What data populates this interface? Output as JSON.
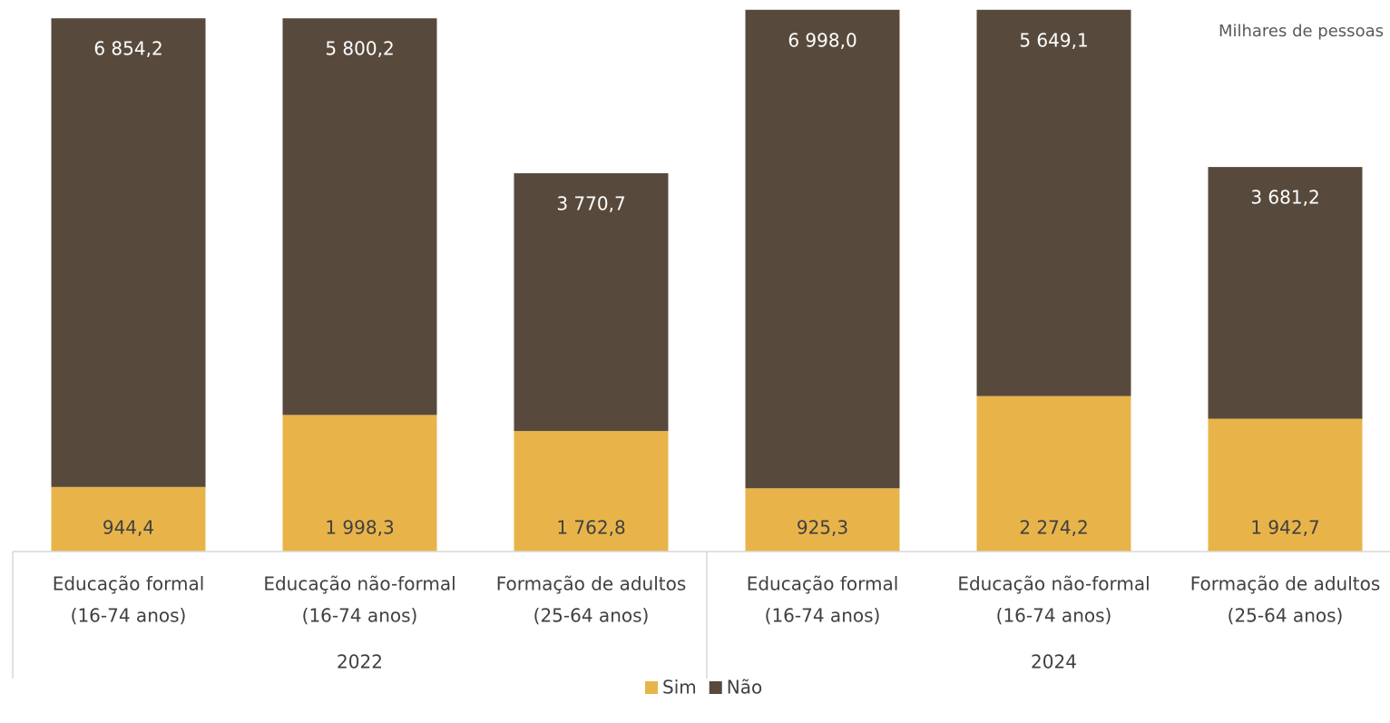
{
  "chart_data": {
    "type": "bar",
    "stacked": true,
    "unit_label": "Milhares de pessoas",
    "groups": [
      {
        "name": "2022",
        "categories": [
          [
            "Educação formal",
            "(16-74 anos)"
          ],
          [
            "Educação não-formal",
            "(16-74 anos)"
          ],
          [
            "Formação de adultos",
            "(25-64 anos)"
          ]
        ]
      },
      {
        "name": "2024",
        "categories": [
          [
            "Educação formal",
            "(16-74 anos)"
          ],
          [
            "Educação não-formal",
            "(16-74 anos)"
          ],
          [
            "Formação de adultos",
            "(25-64 anos)"
          ]
        ]
      }
    ],
    "series": [
      {
        "name": "Sim",
        "color": "#e8b44a",
        "values": [
          944.4,
          1998.3,
          1762.8,
          925.3,
          2274.2,
          1942.7
        ],
        "value_labels": [
          "944,4",
          "1 998,3",
          "1 762,8",
          "925,3",
          "2 274,2",
          "1 942,7"
        ]
      },
      {
        "name": "Não",
        "color": "#574a3c",
        "values": [
          6854.2,
          5800.2,
          3770.7,
          6998.0,
          5649.1,
          3681.2
        ],
        "value_labels": [
          "6 854,2",
          "5 800,2",
          "3 770,7",
          "6 998,0",
          "5 649,1",
          "3 681,2"
        ]
      }
    ],
    "ylim": [
      0,
      8000
    ]
  }
}
